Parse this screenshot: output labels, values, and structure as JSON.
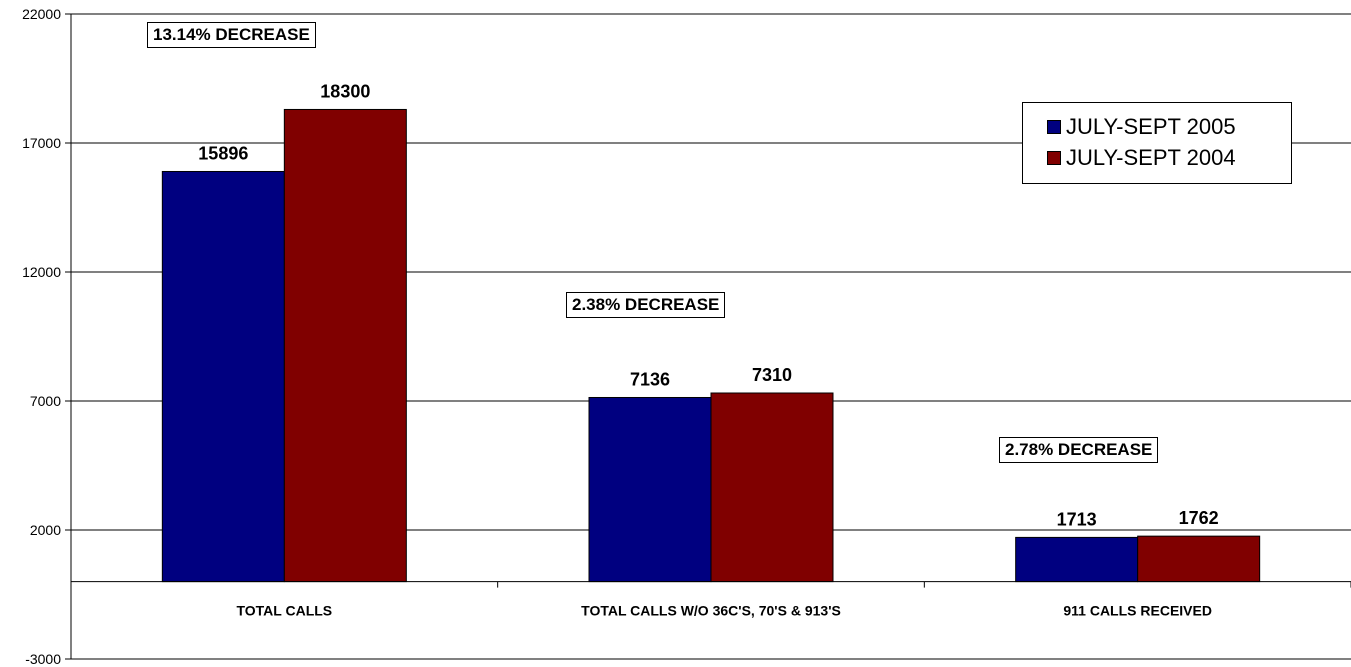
{
  "chart_data": {
    "type": "bar",
    "categories": [
      "TOTAL CALLS",
      "TOTAL CALLS W/O 36C'S, 70'S & 913'S",
      "911 CALLS RECEIVED"
    ],
    "series": [
      {
        "name": "JULY-SEPT 2005",
        "values": [
          15896,
          7136,
          1713
        ],
        "color": "#000080"
      },
      {
        "name": "JULY-SEPT 2004",
        "values": [
          18300,
          7310,
          1762
        ],
        "color": "#800000"
      }
    ],
    "data_labels": [
      [
        "15896",
        "7136",
        "1713"
      ],
      [
        "18300",
        "7310",
        "1762"
      ]
    ],
    "ylim": [
      -3000,
      22000
    ],
    "yticks": [
      22000,
      17000,
      12000,
      7000,
      2000,
      -3000
    ],
    "ytick_labels": [
      "22000",
      "17000",
      "12000",
      "7000",
      "2000",
      "-3000"
    ],
    "grid": true,
    "legend_position": "right",
    "annotations": [
      "13.14% DECREASE",
      "2.38% DECREASE",
      "2.78% DECREASE"
    ]
  }
}
